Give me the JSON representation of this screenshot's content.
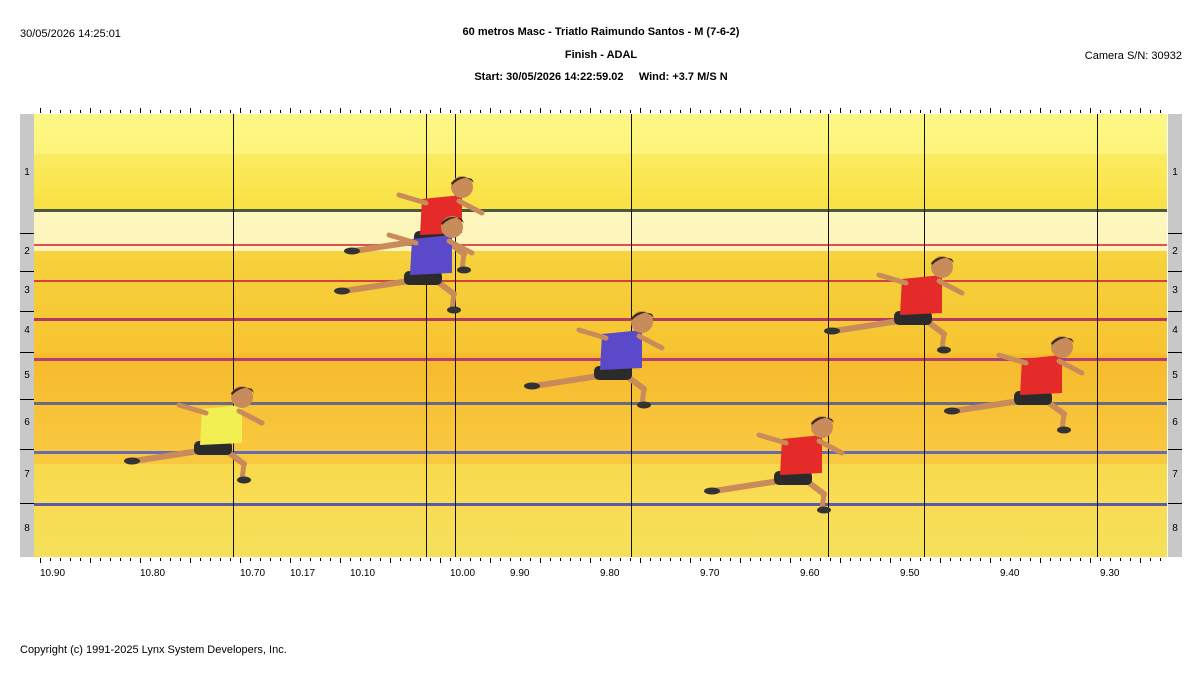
{
  "header": {
    "timestamp": "30/05/2026 14:25:01",
    "title": "60 metros Masc - Triatlo Raimundo Santos - M (7-6-2)",
    "subtitle": "Finish - ADAL",
    "start_line": "Start: 30/05/2026 14:22:59.02     Wind: +3.7 M/S N",
    "camera": "Camera S/N: 30932"
  },
  "lanes": [
    "1",
    "2",
    "3",
    "4",
    "5",
    "6",
    "7",
    "8"
  ],
  "time_axis": [
    "10.90",
    "10.80",
    "10.70",
    "10.17",
    "10.10",
    "10.00",
    "9.90",
    "9.80",
    "9.70",
    "9.60",
    "9.50",
    "9.40",
    "9.30"
  ],
  "runners": [
    {
      "lane": "1",
      "shirt": "red"
    },
    {
      "lane": "2",
      "shirt": "blue"
    },
    {
      "lane": "3",
      "shirt": "red"
    },
    {
      "lane": "4",
      "shirt": "blue"
    },
    {
      "lane": "5",
      "shirt": "red"
    },
    {
      "lane": "6",
      "shirt": "yellow"
    },
    {
      "lane": "7",
      "shirt": "red"
    }
  ],
  "colors": {
    "red": "#e52a2a",
    "blue": "#5a49c9",
    "yellow": "#f2ef52",
    "shorts": "#2b2b2b",
    "skin": "#c98b5a"
  },
  "footer": {
    "copyright": "Copyright (c) 1991-2025 Lynx System Developers, Inc."
  }
}
